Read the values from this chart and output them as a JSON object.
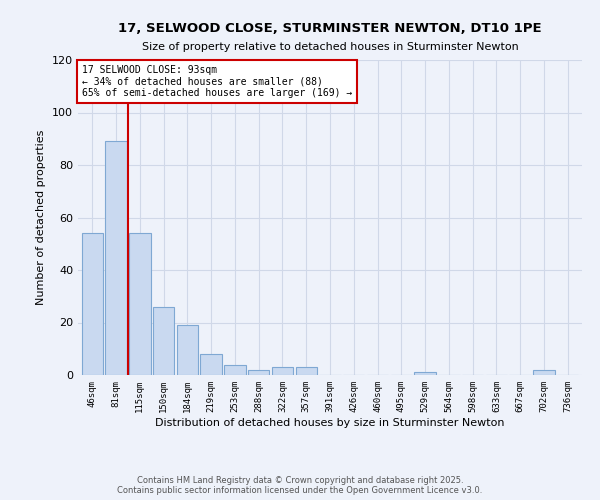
{
  "title1": "17, SELWOOD CLOSE, STURMINSTER NEWTON, DT10 1PE",
  "title2": "Size of property relative to detached houses in Sturminster Newton",
  "xlabel": "Distribution of detached houses by size in Sturminster Newton",
  "ylabel": "Number of detached properties",
  "categories": [
    "46sqm",
    "81sqm",
    "115sqm",
    "150sqm",
    "184sqm",
    "219sqm",
    "253sqm",
    "288sqm",
    "322sqm",
    "357sqm",
    "391sqm",
    "426sqm",
    "460sqm",
    "495sqm",
    "529sqm",
    "564sqm",
    "598sqm",
    "633sqm",
    "667sqm",
    "702sqm",
    "736sqm"
  ],
  "values": [
    54,
    89,
    54,
    26,
    19,
    8,
    4,
    2,
    3,
    3,
    0,
    0,
    0,
    0,
    1,
    0,
    0,
    0,
    0,
    2,
    0
  ],
  "bar_color": "#c9d9f0",
  "bar_edge_color": "#7fa8d3",
  "property_label": "17 SELWOOD CLOSE: 93sqm",
  "annotation_line1": "← 34% of detached houses are smaller (88)",
  "annotation_line2": "65% of semi-detached houses are larger (169) →",
  "annotation_box_color": "#ffffff",
  "annotation_box_edge": "#cc0000",
  "vertical_line_color": "#cc0000",
  "ylim": [
    0,
    120
  ],
  "yticks": [
    0,
    20,
    40,
    60,
    80,
    100,
    120
  ],
  "grid_color": "#d0d8e8",
  "bg_color": "#eef2fa",
  "footer1": "Contains HM Land Registry data © Crown copyright and database right 2025.",
  "footer2": "Contains public sector information licensed under the Open Government Licence v3.0."
}
